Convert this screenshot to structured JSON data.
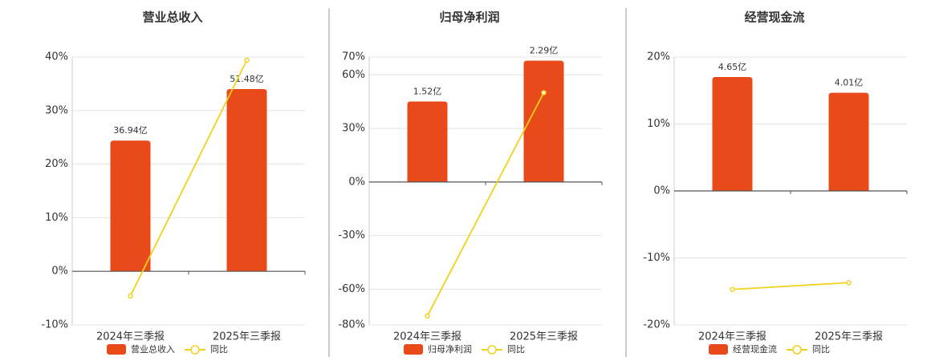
{
  "chart_data": [
    {
      "type": "bar-line",
      "title": "营业总收入",
      "categories": [
        "2024年三季报",
        "2025年三季报"
      ],
      "series": [
        {
          "name": "营业总收入",
          "color": "#e84a1a",
          "axis": "y2",
          "values": [
            36.94,
            51.48
          ],
          "value_labels": [
            "36.94亿",
            "51.48亿"
          ]
        },
        {
          "name": "同比",
          "color": "#f2d11a",
          "axis": "y",
          "values": [
            -4.6,
            39.4
          ]
        }
      ],
      "ylim": [
        -10,
        40
      ],
      "yticks": [
        {
          "value": -10,
          "label": "-10%"
        },
        {
          "value": 0,
          "label": "0%"
        },
        {
          "value": 10,
          "label": "10%"
        },
        {
          "value": 20,
          "label": "20%"
        },
        {
          "value": 30,
          "label": "30%"
        },
        {
          "value": 40,
          "label": "40%"
        }
      ],
      "y2lim": [
        -15.14,
        60.56
      ],
      "grid": true
    },
    {
      "type": "bar-line",
      "title": "归母净利润",
      "categories": [
        "2024年三季报",
        "2025年三季报"
      ],
      "series": [
        {
          "name": "归母净利润",
          "color": "#e84a1a",
          "axis": "y2",
          "values": [
            1.52,
            2.29
          ],
          "value_labels": [
            "1.52亿",
            "2.29亿"
          ]
        },
        {
          "name": "同比",
          "color": "#f2d11a",
          "axis": "y",
          "values": [
            -75,
            50
          ]
        }
      ],
      "ylim": [
        -80,
        70
      ],
      "yticks": [
        {
          "value": -80,
          "label": "-80%"
        },
        {
          "value": -60,
          "label": "-60%"
        },
        {
          "value": -30,
          "label": "-30%"
        },
        {
          "value": 0,
          "label": "0%"
        },
        {
          "value": 30,
          "label": "30%"
        },
        {
          "value": 60,
          "label": "60%"
        },
        {
          "value": 70,
          "label": "70%"
        }
      ],
      "y2lim": [
        -2.7,
        2.36
      ],
      "grid": true
    },
    {
      "type": "bar-line",
      "title": "经营现金流",
      "categories": [
        "2024年三季报",
        "2025年三季报"
      ],
      "series": [
        {
          "name": "经营现金流",
          "color": "#e84a1a",
          "axis": "y2",
          "values": [
            4.65,
            4.01
          ],
          "value_labels": [
            "4.65亿",
            "4.01亿"
          ]
        },
        {
          "name": "同比",
          "color": "#f2d11a",
          "axis": "y",
          "values": [
            -14.7,
            -13.7
          ]
        }
      ],
      "ylim": [
        -20,
        20
      ],
      "yticks": [
        {
          "value": -20,
          "label": "-20%"
        },
        {
          "value": -10,
          "label": "-10%"
        },
        {
          "value": 0,
          "label": "0%"
        },
        {
          "value": 10,
          "label": "10%"
        },
        {
          "value": 20,
          "label": "20%"
        }
      ],
      "y2lim": [
        -5.47,
        5.47
      ],
      "grid": true
    }
  ]
}
